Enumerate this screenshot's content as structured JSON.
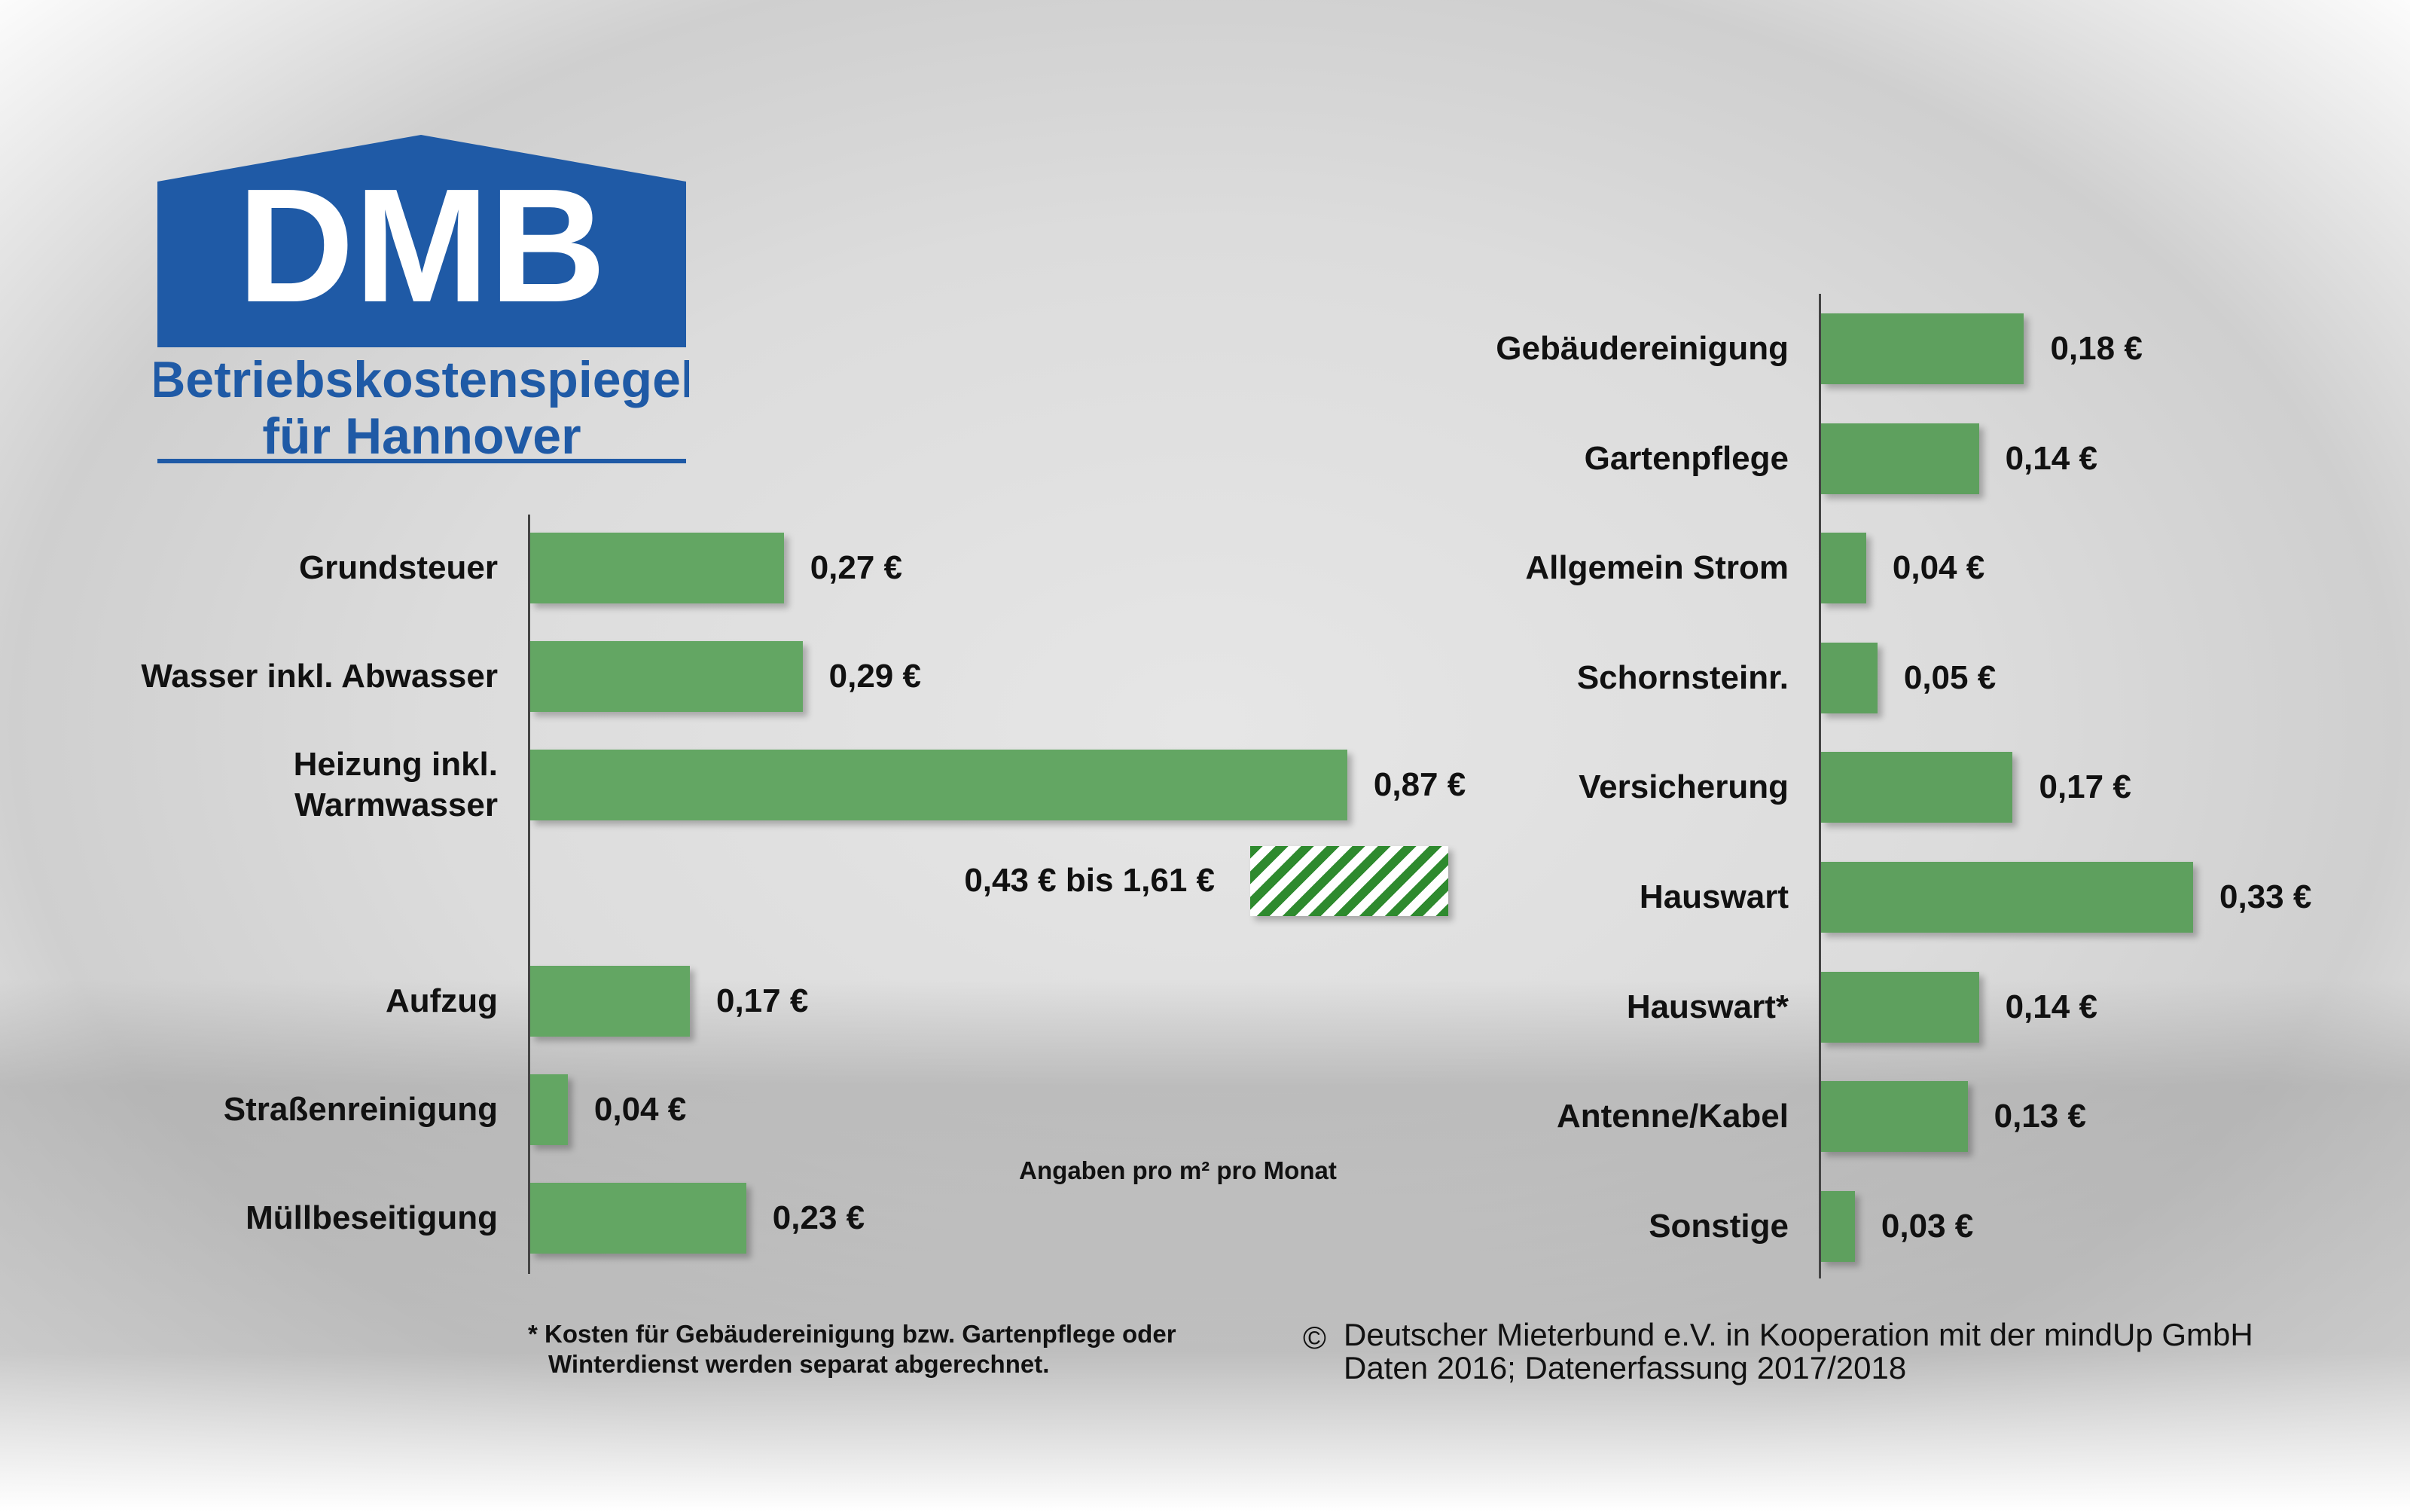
{
  "header": {
    "logo": "DMB",
    "title": "Betriebskostenspiegel",
    "subtitle": "für Hannover"
  },
  "chart_data": [
    {
      "type": "bar",
      "orientation": "horizontal",
      "categories": [
        "Grundsteuer",
        "Wasser inkl. Abwasser",
        "Heizung inkl.\nWarmwasser",
        "Aufzug",
        "Straßenreinigung",
        "Müllbeseitigung"
      ],
      "values": [
        0.27,
        0.29,
        0.87,
        0.17,
        0.04,
        0.23
      ],
      "value_labels": [
        "0,27 €",
        "0,29 €",
        "0,87 €",
        "0,17 €",
        "0,04 €",
        "0,23 €"
      ],
      "color": "#63a663",
      "range_annotation": "0,43 € bis 1,61 €",
      "note": "Angaben pro m² pro Monat"
    },
    {
      "type": "bar",
      "orientation": "horizontal",
      "categories": [
        "Gebäudereinigung",
        "Gartenpflege",
        "Allgemein Strom",
        "Schornsteinr.",
        "Versicherung",
        "Hauswart",
        "Hauswart*",
        "Antenne/Kabel",
        "Sonstige"
      ],
      "values": [
        0.18,
        0.14,
        0.04,
        0.05,
        0.17,
        0.33,
        0.14,
        0.13,
        0.03
      ],
      "value_labels": [
        "0,18 €",
        "0,14 €",
        "0,04 €",
        "0,05 €",
        "0,17 €",
        "0,33 €",
        "0,14 €",
        "0,13 €",
        "0,03 €"
      ],
      "color": "#5ea05e"
    }
  ],
  "footnote": [
    "* Kosten für Gebäudereinigung bzw. Gartenpflege oder",
    "Winterdienst werden separat abgerechnet."
  ],
  "source": {
    "symbol": "©",
    "lines": [
      "Deutscher Mieterbund e.V. in Kooperation mit der mindUp GmbH",
      "Daten 2016; Datenerfassung 2017/2018"
    ]
  }
}
